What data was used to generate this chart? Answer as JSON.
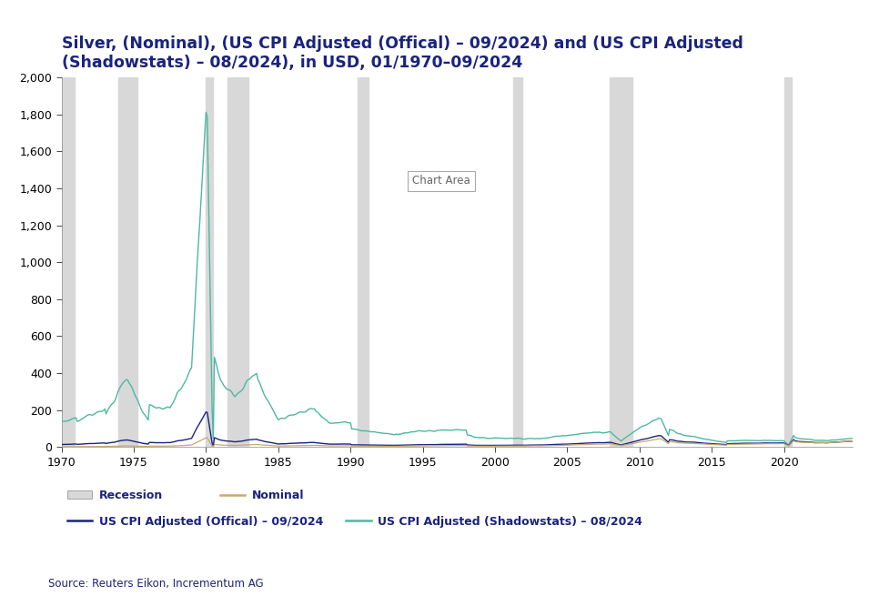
{
  "title": "Silver, (Nominal), (US CPI Adjusted (Offical) – 09/2024) and (US CPI Adjusted\n(Shadowstats) – 08/2024), in USD, 01/1970–09/2024",
  "ylim": [
    0,
    2000
  ],
  "yticks": [
    0,
    200,
    400,
    600,
    800,
    1000,
    1200,
    1400,
    1600,
    1800,
    2000
  ],
  "xticks": [
    1970,
    1975,
    1980,
    1985,
    1990,
    1995,
    2000,
    2005,
    2010,
    2015,
    2020
  ],
  "xmin": 1970,
  "xmax": 2024.75,
  "recession_periods": [
    [
      1970.0,
      1970.917
    ],
    [
      1973.917,
      1975.25
    ],
    [
      1980.0,
      1980.5
    ],
    [
      1981.5,
      1982.917
    ],
    [
      1990.5,
      1991.25
    ],
    [
      2001.25,
      2001.917
    ],
    [
      2007.917,
      2009.5
    ],
    [
      2020.0,
      2020.5
    ]
  ],
  "nominal_color": "#c8a96e",
  "official_cpi_color": "#1a237e",
  "shadowstats_color": "#4db8a0",
  "recession_color": "#d8d8d8",
  "background_color": "#ffffff",
  "legend_recession": "Recession",
  "legend_nominal": "Nominal",
  "legend_official": "US CPI Adjusted (Offical) – 09/2024",
  "legend_shadow": "US CPI Adjusted (Shadowstats) – 08/2024",
  "source_text": "Source: Reuters Eikon, Incrementum AG",
  "chart_area_label": "Chart Area",
  "title_color": "#1a237e",
  "title_fontsize": 12.5,
  "label_fontsize": 9
}
